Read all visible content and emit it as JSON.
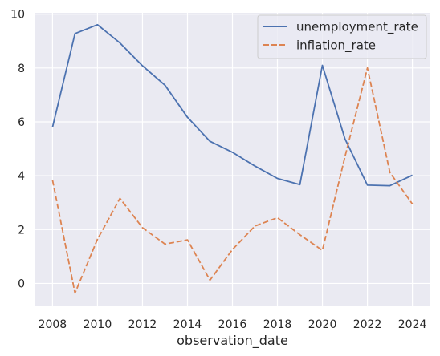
{
  "chart_data": {
    "type": "line",
    "xlabel": "observation_date",
    "ylabel": "",
    "xlim": [
      2007.2,
      2024.8
    ],
    "ylim": [
      -0.85,
      10.05
    ],
    "x_ticks": [
      2008,
      2010,
      2012,
      2014,
      2016,
      2018,
      2020,
      2022,
      2024
    ],
    "y_ticks": [
      0,
      2,
      4,
      6,
      8,
      10
    ],
    "grid": true,
    "legend_position": "top-right",
    "x": [
      2008,
      2009,
      2010,
      2011,
      2012,
      2013,
      2014,
      2015,
      2016,
      2017,
      2018,
      2019,
      2020,
      2021,
      2022,
      2023,
      2024
    ],
    "series": [
      {
        "name": "unemployment_rate",
        "color": "#4c72b0",
        "style": "solid",
        "values": [
          5.8,
          9.28,
          9.61,
          8.93,
          8.08,
          7.36,
          6.17,
          5.28,
          4.87,
          4.36,
          3.9,
          3.67,
          8.1,
          5.37,
          3.65,
          3.63,
          4.02
        ]
      },
      {
        "name": "inflation_rate",
        "color": "#dd8452",
        "style": "dashed",
        "values": [
          3.84,
          -0.36,
          1.64,
          3.16,
          2.07,
          1.46,
          1.62,
          0.12,
          1.26,
          2.13,
          2.44,
          1.81,
          1.23,
          4.7,
          8.0,
          4.12,
          2.95
        ]
      }
    ]
  }
}
